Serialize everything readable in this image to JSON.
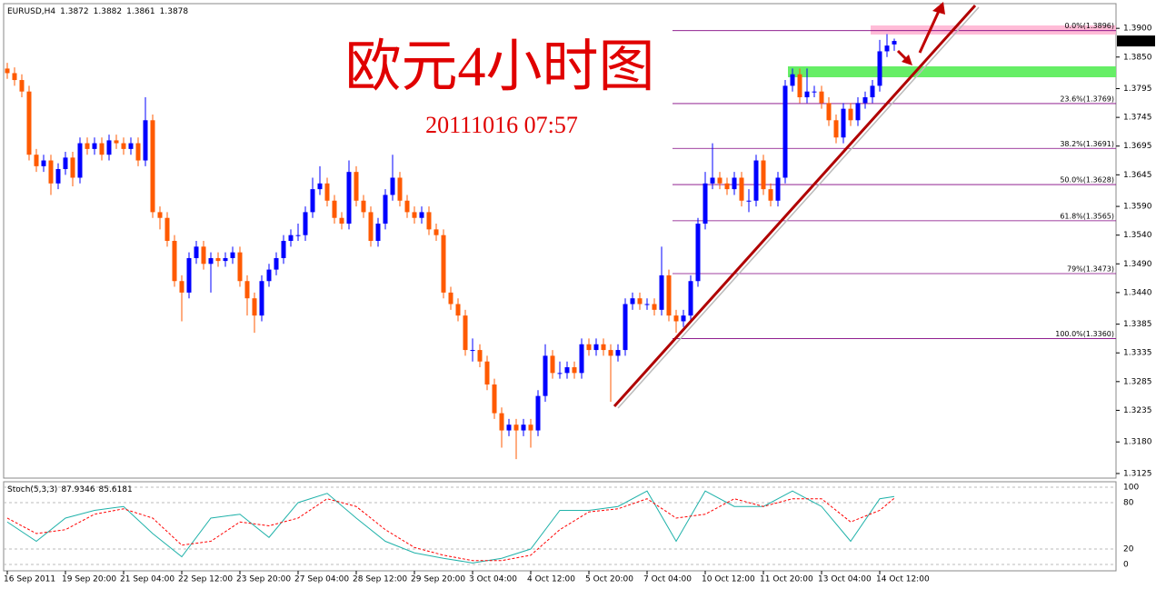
{
  "chart_data": {
    "type": "candlestick",
    "symbol": "EURUSD,H4",
    "title": "欧元4小时图",
    "subtitle": "20111016 07:57",
    "up_color": "#0000ff",
    "down_color": "#ff5a00",
    "xlim": [
      -0.5,
      152.5
    ],
    "xticks": [
      {
        "value": 0,
        "label": "16 Sep 2011"
      },
      {
        "value": 8,
        "label": "19 Sep 20:00"
      },
      {
        "value": 16,
        "label": "21 Sep 04:00"
      },
      {
        "value": 24,
        "label": "22 Sep 12:00"
      },
      {
        "value": 32,
        "label": "23 Sep 20:00"
      },
      {
        "value": 40,
        "label": "27 Sep 04:00"
      },
      {
        "value": 48,
        "label": "28 Sep 12:00"
      },
      {
        "value": 56,
        "label": "29 Sep 20:00"
      },
      {
        "value": 64,
        "label": "3 Oct 04:00"
      },
      {
        "value": 72,
        "label": "4 Oct 12:00"
      },
      {
        "value": 80,
        "label": "5 Oct 20:00"
      },
      {
        "value": 88,
        "label": "7 Oct 04:00"
      },
      {
        "value": 96,
        "label": "10 Oct 12:00"
      },
      {
        "value": 104,
        "label": "11 Oct 20:00"
      },
      {
        "value": 112,
        "label": "13 Oct 04:00"
      },
      {
        "value": 120,
        "label": "14 Oct 12:00"
      }
    ],
    "ylim": [
      1.3117,
      1.3943
    ],
    "yticks": [
      {
        "value": 1.39,
        "label": "1.3900"
      },
      {
        "value": 1.385,
        "label": "1.3850"
      },
      {
        "value": 1.3795,
        "label": "1.3795"
      },
      {
        "value": 1.3745,
        "label": "1.3745"
      },
      {
        "value": 1.3695,
        "label": "1.3695"
      },
      {
        "value": 1.3645,
        "label": "1.3645"
      },
      {
        "value": 1.359,
        "label": "1.3590"
      },
      {
        "value": 1.354,
        "label": "1.3540"
      },
      {
        "value": 1.349,
        "label": "1.3490"
      },
      {
        "value": 1.344,
        "label": "1.3440"
      },
      {
        "value": 1.3385,
        "label": "1.3385"
      },
      {
        "value": 1.3335,
        "label": "1.3335"
      },
      {
        "value": 1.3285,
        "label": "1.3285"
      },
      {
        "value": 1.3235,
        "label": "1.3235"
      },
      {
        "value": 1.318,
        "label": "1.3180"
      },
      {
        "value": 1.3125,
        "label": "1.3125"
      }
    ],
    "fib_color": "#800080",
    "fib": [
      {
        "value": 1.3896,
        "label": "0.0%(1.3896)"
      },
      {
        "value": 1.3769,
        "label": "23.6%(1.3769)"
      },
      {
        "value": 1.3691,
        "label": "38.2%(1.3691)"
      },
      {
        "value": 1.3628,
        "label": "50.0%(1.3628)"
      },
      {
        "value": 1.3565,
        "label": "61.8%(1.3565)"
      },
      {
        "value": 1.3473,
        "label": "79%(1.3473)"
      },
      {
        "value": 1.336,
        "label": "100.0%(1.3360)"
      }
    ],
    "open": [
      1.383,
      1.3822,
      1.381,
      1.379,
      1.368,
      1.366,
      1.367,
      1.363,
      1.3655,
      1.3675,
      1.364,
      1.37,
      1.369,
      1.37,
      1.368,
      1.3705,
      1.37,
      1.369,
      1.37,
      1.367,
      1.374,
      1.358,
      1.357,
      1.353,
      1.346,
      1.344,
      1.35,
      1.352,
      1.349,
      1.35,
      1.3495,
      1.35,
      1.351,
      1.346,
      1.343,
      1.34,
      1.346,
      1.348,
      1.35,
      1.353,
      1.354,
      1.354,
      1.358,
      1.362,
      1.363,
      1.36,
      1.357,
      1.356,
      1.365,
      1.36,
      1.358,
      1.353,
      1.356,
      1.361,
      1.364,
      1.36,
      1.358,
      1.357,
      1.358,
      1.355,
      1.354,
      1.344,
      1.342,
      1.34,
      1.334,
      1.334,
      1.332,
      1.328,
      1.323,
      1.32,
      1.321,
      1.32,
      1.321,
      1.32,
      1.326,
      1.333,
      1.33,
      1.33,
      1.331,
      1.33,
      1.335,
      1.334,
      1.335,
      1.334,
      1.333,
      1.334,
      1.342,
      1.343,
      1.342,
      1.342,
      1.341,
      1.347,
      1.34,
      1.339,
      1.34,
      1.346,
      1.356,
      1.363,
      1.364,
      1.363,
      1.362,
      1.364,
      1.36,
      1.36,
      1.367,
      1.362,
      1.36,
      1.364,
      1.38,
      1.382,
      1.378,
      1.379,
      1.379,
      1.377,
      1.374,
      1.371,
      1.376,
      1.374,
      1.377,
      1.378,
      1.38,
      1.386,
      1.3872
    ],
    "high": [
      1.384,
      1.3832,
      1.382,
      1.38,
      1.369,
      1.368,
      1.368,
      1.3665,
      1.3685,
      1.3685,
      1.371,
      1.371,
      1.371,
      1.371,
      1.3715,
      1.3715,
      1.371,
      1.371,
      1.371,
      1.378,
      1.375,
      1.359,
      1.358,
      1.354,
      1.347,
      1.351,
      1.353,
      1.353,
      1.351,
      1.351,
      1.351,
      1.352,
      1.352,
      1.347,
      1.344,
      1.347,
      1.349,
      1.351,
      1.354,
      1.355,
      1.356,
      1.359,
      1.364,
      1.366,
      1.364,
      1.361,
      1.358,
      1.367,
      1.366,
      1.361,
      1.359,
      1.357,
      1.362,
      1.368,
      1.365,
      1.361,
      1.359,
      1.359,
      1.359,
      1.356,
      1.355,
      1.345,
      1.343,
      1.341,
      1.336,
      1.335,
      1.333,
      1.329,
      1.324,
      1.322,
      1.322,
      1.322,
      1.322,
      1.327,
      1.335,
      1.334,
      1.332,
      1.332,
      1.332,
      1.336,
      1.336,
      1.336,
      1.336,
      1.335,
      1.335,
      1.343,
      1.344,
      1.344,
      1.343,
      1.343,
      1.352,
      1.348,
      1.341,
      1.341,
      1.347,
      1.357,
      1.365,
      1.37,
      1.365,
      1.364,
      1.365,
      1.365,
      1.362,
      1.368,
      1.368,
      1.363,
      1.365,
      1.381,
      1.383,
      1.383,
      1.383,
      1.38,
      1.38,
      1.378,
      1.375,
      1.377,
      1.377,
      1.378,
      1.379,
      1.381,
      1.388,
      1.389,
      1.3882
    ],
    "low": [
      1.3812,
      1.38,
      1.378,
      1.367,
      1.365,
      1.365,
      1.361,
      1.362,
      1.3645,
      1.3625,
      1.363,
      1.368,
      1.368,
      1.367,
      1.367,
      1.369,
      1.368,
      1.368,
      1.366,
      1.366,
      1.357,
      1.355,
      1.352,
      1.345,
      1.339,
      1.343,
      1.349,
      1.348,
      1.344,
      1.3485,
      1.3485,
      1.349,
      1.345,
      1.34,
      1.337,
      1.339,
      1.345,
      1.347,
      1.349,
      1.352,
      1.353,
      1.353,
      1.357,
      1.361,
      1.359,
      1.356,
      1.355,
      1.355,
      1.359,
      1.357,
      1.352,
      1.352,
      1.355,
      1.36,
      1.359,
      1.357,
      1.356,
      1.356,
      1.354,
      1.353,
      1.343,
      1.341,
      1.339,
      1.333,
      1.332,
      1.331,
      1.327,
      1.322,
      1.317,
      1.319,
      1.315,
      1.319,
      1.317,
      1.319,
      1.325,
      1.329,
      1.329,
      1.329,
      1.329,
      1.329,
      1.333,
      1.333,
      1.333,
      1.325,
      1.332,
      1.333,
      1.341,
      1.341,
      1.341,
      1.34,
      1.34,
      1.339,
      1.337,
      1.338,
      1.339,
      1.345,
      1.355,
      1.362,
      1.362,
      1.361,
      1.361,
      1.359,
      1.358,
      1.359,
      1.361,
      1.359,
      1.359,
      1.363,
      1.379,
      1.377,
      1.377,
      1.378,
      1.376,
      1.373,
      1.37,
      1.37,
      1.373,
      1.373,
      1.376,
      1.377,
      1.379,
      1.385,
      1.3861
    ],
    "close": [
      1.3822,
      1.381,
      1.379,
      1.368,
      1.366,
      1.367,
      1.363,
      1.3655,
      1.3675,
      1.364,
      1.37,
      1.369,
      1.37,
      1.368,
      1.3705,
      1.37,
      1.369,
      1.37,
      1.367,
      1.374,
      1.358,
      1.357,
      1.353,
      1.346,
      1.344,
      1.35,
      1.352,
      1.349,
      1.35,
      1.3495,
      1.35,
      1.351,
      1.346,
      1.343,
      1.34,
      1.346,
      1.348,
      1.35,
      1.353,
      1.354,
      1.354,
      1.358,
      1.362,
      1.363,
      1.36,
      1.357,
      1.356,
      1.365,
      1.36,
      1.358,
      1.353,
      1.356,
      1.361,
      1.364,
      1.36,
      1.358,
      1.357,
      1.358,
      1.355,
      1.354,
      1.344,
      1.342,
      1.34,
      1.334,
      1.334,
      1.332,
      1.328,
      1.323,
      1.32,
      1.321,
      1.32,
      1.321,
      1.32,
      1.326,
      1.333,
      1.33,
      1.33,
      1.331,
      1.33,
      1.335,
      1.334,
      1.335,
      1.334,
      1.333,
      1.334,
      1.342,
      1.343,
      1.342,
      1.342,
      1.341,
      1.347,
      1.34,
      1.339,
      1.34,
      1.346,
      1.356,
      1.363,
      1.364,
      1.363,
      1.362,
      1.364,
      1.36,
      1.36,
      1.367,
      1.362,
      1.36,
      1.364,
      1.38,
      1.382,
      1.378,
      1.379,
      1.379,
      1.377,
      1.374,
      1.371,
      1.376,
      1.374,
      1.377,
      1.378,
      1.38,
      1.386,
      1.387,
      1.3878
    ],
    "stoch": {
      "name": "Stoch(5,3,3)",
      "main_color": "#20b2aa",
      "signal_color": "#ff0000",
      "ylim": [
        -8.2,
        107
      ],
      "yticks": [
        100,
        80,
        20,
        0
      ],
      "x": [
        0,
        4,
        8,
        12,
        16,
        20,
        24,
        28,
        32,
        36,
        40,
        44,
        48,
        52,
        56,
        60,
        64,
        68,
        72,
        76,
        80,
        84,
        88,
        92,
        96,
        100,
        104,
        108,
        112,
        116,
        120,
        122
      ],
      "main": [
        55,
        30,
        60,
        70,
        75,
        40,
        10,
        60,
        65,
        35,
        80,
        92,
        60,
        30,
        15,
        8,
        2,
        8,
        20,
        70,
        70,
        75,
        95,
        30,
        95,
        75,
        75,
        95,
        75,
        30,
        85,
        87.9346
      ],
      "signal": [
        60,
        40,
        45,
        65,
        72,
        60,
        25,
        30,
        55,
        50,
        60,
        85,
        75,
        45,
        22,
        12,
        5,
        5,
        12,
        45,
        68,
        72,
        85,
        60,
        65,
        85,
        75,
        85,
        85,
        55,
        70,
        85.6181
      ]
    }
  }
}
